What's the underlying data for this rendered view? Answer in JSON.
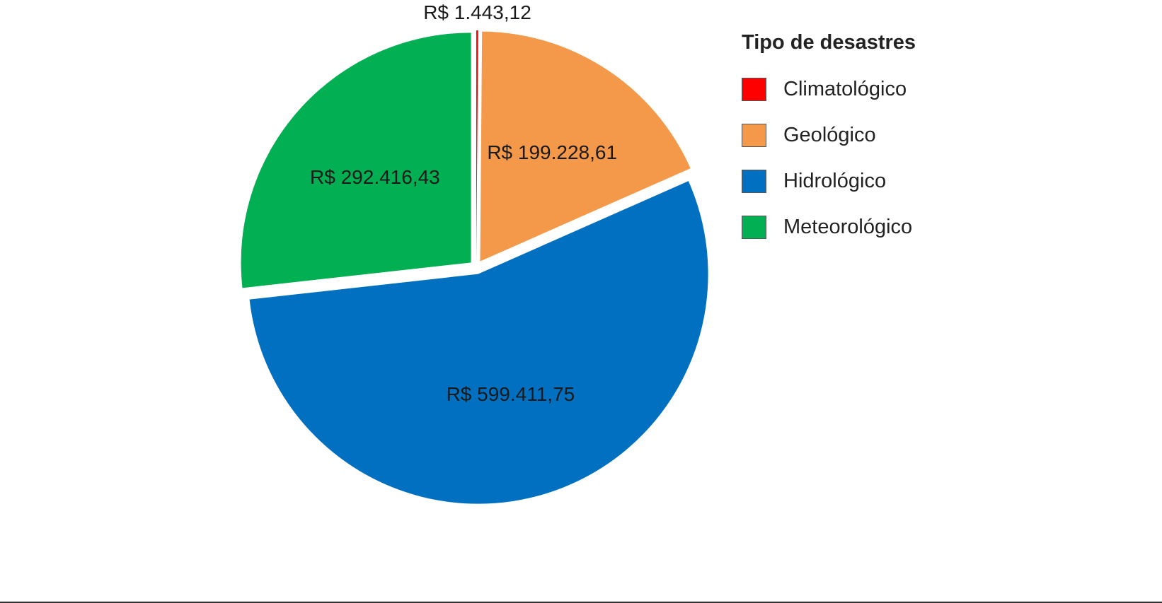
{
  "chart_data": {
    "type": "pie",
    "legend_title": "Tipo de desastres",
    "legend_position": "right",
    "exploded": true,
    "slices": [
      {
        "name": "Climatológico",
        "value": 1443.12,
        "label": "R$ 1.443,12",
        "color": "#ff0000"
      },
      {
        "name": "Geológico",
        "value": 199228.61,
        "label": "R$ 199.228,61",
        "color": "#f4994a"
      },
      {
        "name": "Hidrológico",
        "value": 599411.75,
        "label": "R$ 599.411,75",
        "color": "#0170c1"
      },
      {
        "name": "Meteorológico",
        "value": 292416.43,
        "label": "R$ 292.416,43",
        "color": "#02af52"
      }
    ]
  }
}
